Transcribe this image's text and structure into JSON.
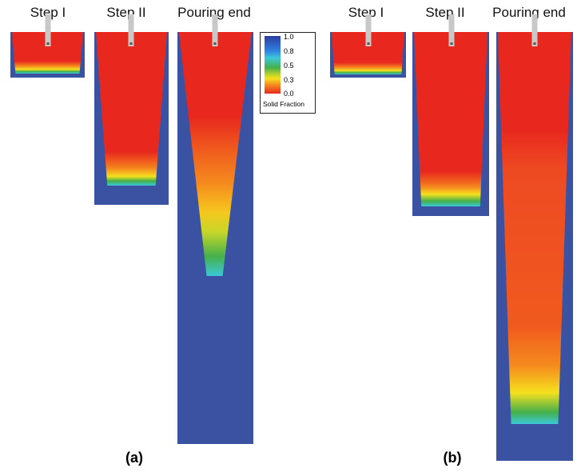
{
  "panels": [
    {
      "caption": "(a)",
      "steps": [
        "Step I",
        "Step II",
        "Pouring end"
      ]
    },
    {
      "caption": "(b)",
      "steps": [
        "Step I",
        "Step II",
        "Pouring end"
      ]
    }
  ],
  "legend": {
    "title": "Solid Fraction",
    "ticks": [
      "1.0",
      "0.8",
      "0.5",
      "0.3",
      "0.0"
    ],
    "colors": [
      "#2b3ea0",
      "#3cc8d8",
      "#45b04a",
      "#f5e01e",
      "#e8281e"
    ]
  }
}
